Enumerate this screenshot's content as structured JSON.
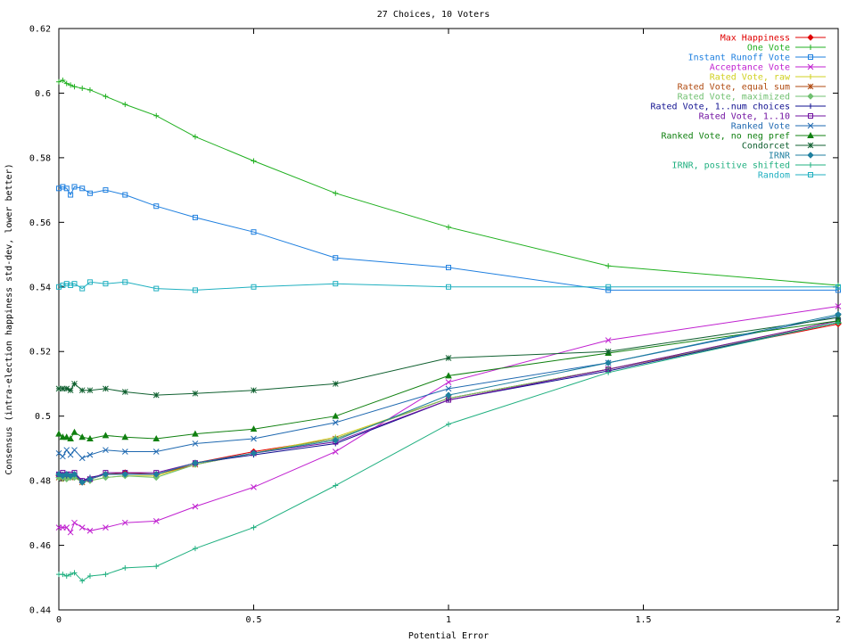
{
  "chart_data": {
    "type": "line",
    "title": "27 Choices, 10 Voters",
    "xlabel": "Potential Error",
    "ylabel": "Consensus (intra-election happiness std-dev, lower better)",
    "xlim": [
      0,
      2
    ],
    "ylim": [
      0.44,
      0.62
    ],
    "xticks": [
      0,
      0.5,
      1,
      1.5,
      2
    ],
    "xtick_labels": [
      "0",
      "0.5",
      "1",
      "1.5",
      "2"
    ],
    "yticks": [
      0.44,
      0.46,
      0.48,
      0.5,
      0.52,
      0.54,
      0.56,
      0.58,
      0.6,
      0.62
    ],
    "ytick_labels": [
      "0.44",
      "0.46",
      "0.48",
      "0.5",
      "0.52",
      "0.54",
      "0.56",
      "0.58",
      "0.6",
      "0.62"
    ],
    "grid": false,
    "legend_position": "top-right",
    "x": [
      0,
      0.01,
      0.02,
      0.03,
      0.04,
      0.06,
      0.08,
      0.12,
      0.17,
      0.25,
      0.35,
      0.5,
      0.71,
      1.0,
      1.41,
      2.0
    ],
    "series": [
      {
        "name": "Max Happiness",
        "color": "#e00000",
        "marker": "diamond",
        "values": [
          0.4815,
          0.4815,
          0.481,
          0.4815,
          0.4815,
          0.4795,
          0.4805,
          0.482,
          0.4825,
          0.482,
          0.4855,
          0.489,
          0.493,
          0.5055,
          0.5145,
          0.5285
        ]
      },
      {
        "name": "One Vote",
        "color": "#20b020",
        "marker": "plus",
        "values": [
          0.6035,
          0.604,
          0.603,
          0.6025,
          0.602,
          0.6015,
          0.601,
          0.599,
          0.5965,
          0.593,
          0.5865,
          0.579,
          0.569,
          0.5585,
          0.5465,
          0.5405
        ]
      },
      {
        "name": "Instant Runoff Vote",
        "color": "#1e7fdf",
        "marker": "square",
        "values": [
          0.5705,
          0.571,
          0.5705,
          0.5685,
          0.571,
          0.5705,
          0.569,
          0.57,
          0.5685,
          0.565,
          0.5615,
          0.557,
          0.549,
          0.546,
          0.539,
          0.539
        ]
      },
      {
        "name": "Acceptance Vote",
        "color": "#c020d0",
        "marker": "x",
        "values": [
          0.4655,
          0.4655,
          0.4655,
          0.464,
          0.467,
          0.4655,
          0.4645,
          0.4655,
          0.467,
          0.4675,
          0.472,
          0.478,
          0.489,
          0.5105,
          0.5235,
          0.534
        ]
      },
      {
        "name": "Rated Vote, raw",
        "color": "#d0d020",
        "marker": "plus",
        "values": [
          0.4815,
          0.4805,
          0.481,
          0.481,
          0.481,
          0.4795,
          0.48,
          0.481,
          0.4815,
          0.4815,
          0.485,
          0.4885,
          0.4935,
          0.5055,
          0.5145,
          0.529
        ]
      },
      {
        "name": "Rated Vote, equal sum",
        "color": "#b04a10",
        "marker": "star",
        "values": [
          0.481,
          0.4815,
          0.481,
          0.481,
          0.4815,
          0.4795,
          0.4805,
          0.482,
          0.482,
          0.482,
          0.485,
          0.4885,
          0.493,
          0.5055,
          0.5145,
          0.5295
        ]
      },
      {
        "name": "Rated Vote, maximized",
        "color": "#70c070",
        "marker": "diamond",
        "values": [
          0.481,
          0.481,
          0.4805,
          0.481,
          0.481,
          0.4795,
          0.48,
          0.481,
          0.4815,
          0.481,
          0.485,
          0.4885,
          0.493,
          0.5055,
          0.5145,
          0.529
        ]
      },
      {
        "name": "Rated Vote, 1..num choices",
        "color": "#101090",
        "marker": "plus",
        "values": [
          0.482,
          0.482,
          0.4815,
          0.4815,
          0.482,
          0.48,
          0.481,
          0.482,
          0.482,
          0.482,
          0.4855,
          0.488,
          0.4915,
          0.505,
          0.514,
          0.529
        ]
      },
      {
        "name": "Rated Vote, 1..10",
        "color": "#7010a0",
        "marker": "square",
        "values": [
          0.482,
          0.4825,
          0.482,
          0.482,
          0.4825,
          0.48,
          0.4805,
          0.4825,
          0.4825,
          0.4825,
          0.4855,
          0.4885,
          0.492,
          0.505,
          0.5145,
          0.5295
        ]
      },
      {
        "name": "Ranked Vote",
        "color": "#1e68b0",
        "marker": "x",
        "values": [
          0.4885,
          0.4875,
          0.4895,
          0.488,
          0.4895,
          0.487,
          0.488,
          0.4895,
          0.489,
          0.489,
          0.4915,
          0.493,
          0.498,
          0.5085,
          0.5165,
          0.531
        ]
      },
      {
        "name": "Ranked Vote, no neg pref",
        "color": "#108010",
        "marker": "triangle",
        "values": [
          0.4945,
          0.4935,
          0.4935,
          0.493,
          0.495,
          0.4935,
          0.493,
          0.494,
          0.4935,
          0.493,
          0.4945,
          0.496,
          0.5,
          0.5125,
          0.5195,
          0.5295
        ]
      },
      {
        "name": "Condorcet",
        "color": "#106030",
        "marker": "star",
        "values": [
          0.5085,
          0.5085,
          0.5085,
          0.508,
          0.51,
          0.508,
          0.508,
          0.5085,
          0.5075,
          0.5065,
          0.507,
          0.508,
          0.51,
          0.518,
          0.52,
          0.5305
        ]
      },
      {
        "name": "IRNR",
        "color": "#1e7f9f",
        "marker": "diamond",
        "values": [
          0.482,
          0.4815,
          0.482,
          0.4815,
          0.482,
          0.4795,
          0.4805,
          0.482,
          0.482,
          0.482,
          0.4855,
          0.4885,
          0.4925,
          0.5065,
          0.5165,
          0.5315
        ]
      },
      {
        "name": "IRNR, positive shifted",
        "color": "#20b080",
        "marker": "plus",
        "values": [
          0.451,
          0.451,
          0.4505,
          0.451,
          0.4515,
          0.449,
          0.4505,
          0.451,
          0.453,
          0.4535,
          0.459,
          0.4655,
          0.4785,
          0.4975,
          0.5135,
          0.529
        ]
      },
      {
        "name": "Random",
        "color": "#20b0c0",
        "marker": "square",
        "values": [
          0.54,
          0.5405,
          0.541,
          0.5405,
          0.541,
          0.5395,
          0.5415,
          0.541,
          0.5415,
          0.5395,
          0.539,
          0.54,
          0.541,
          0.54,
          0.54,
          0.54
        ]
      }
    ]
  }
}
